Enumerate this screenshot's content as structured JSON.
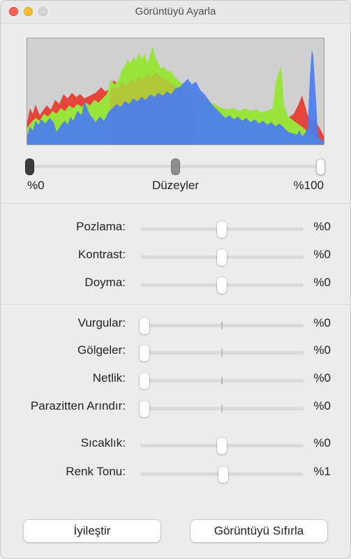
{
  "window": {
    "title": "Görüntüyü Ayarla"
  },
  "levels": {
    "min_label": "%0",
    "center_label": "Düzeyler",
    "max_label": "%100",
    "black_point": 0,
    "mid_point": 0.5,
    "white_point": 1
  },
  "adjustments": [
    {
      "label": "Pozlama:",
      "value": "%0",
      "position": 0.5,
      "group": "tone"
    },
    {
      "label": "Kontrast:",
      "value": "%0",
      "position": 0.5,
      "group": "tone"
    },
    {
      "label": "Doyma:",
      "value": "%0",
      "position": 0.5,
      "group": "tone"
    },
    {
      "label": "Vurgular:",
      "value": "%0",
      "position": 0,
      "group": "detail",
      "tick": true
    },
    {
      "label": "Gölgeler:",
      "value": "%0",
      "position": 0,
      "group": "detail",
      "tick": true
    },
    {
      "label": "Netlik:",
      "value": "%0",
      "position": 0,
      "group": "detail",
      "tick": true
    },
    {
      "label": "Parazitten Arındır:",
      "value": "%0",
      "position": 0,
      "group": "detail",
      "tick": true
    },
    {
      "label": "Sıcaklık:",
      "value": "%0",
      "position": 0.5,
      "group": "color"
    },
    {
      "label": "Renk Tonu:",
      "value": "%1",
      "position": 0.51,
      "group": "color"
    }
  ],
  "buttons": {
    "enhance": "İyileştir",
    "reset": "Görüntüyü Sıfırla"
  },
  "colors": {
    "histogram_red": "#e5453b",
    "histogram_green": "#98e43a",
    "histogram_blue": "#4c7cf0",
    "close": "#fe5f57",
    "minimize": "#febc2e"
  }
}
